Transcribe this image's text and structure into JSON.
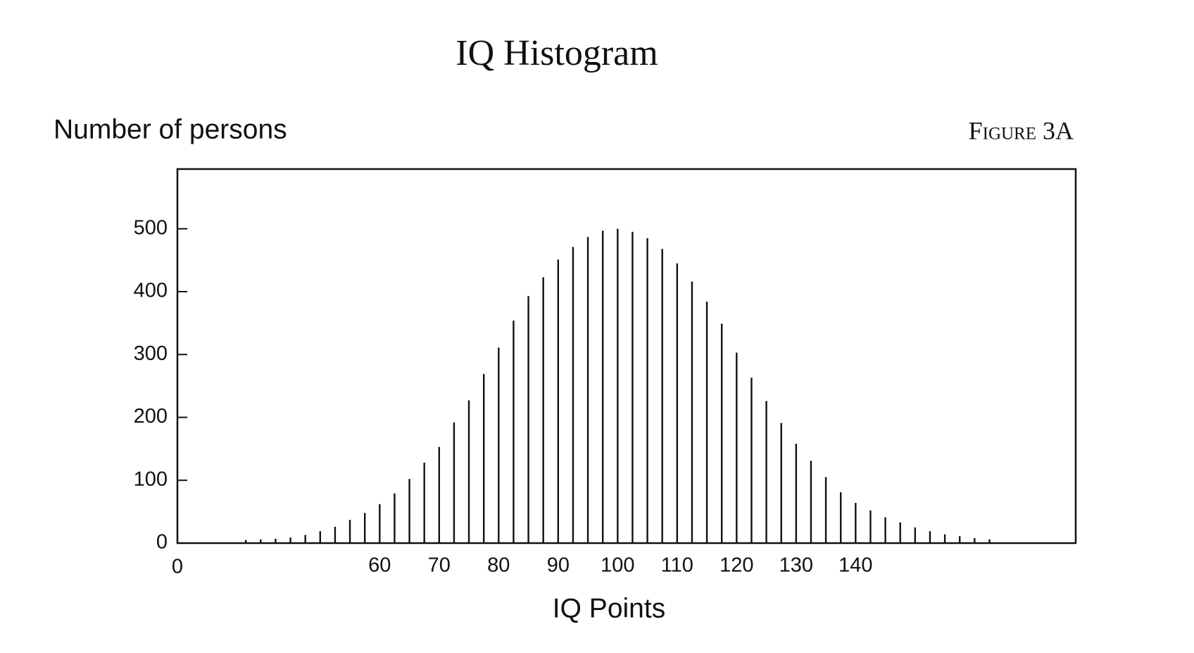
{
  "chart_data": {
    "type": "stem",
    "title": "IQ Histogram",
    "figure_label": "Figure 3A",
    "y_label": "Number of persons",
    "x_label": "IQ Points",
    "x_axis_break_label": "0",
    "color": "#111111",
    "x": [
      37.5,
      40,
      42.5,
      45,
      47.5,
      50,
      52.5,
      55,
      57.5,
      60,
      62.5,
      65,
      67.5,
      70,
      72.5,
      75,
      77.5,
      80,
      82.5,
      85,
      87.5,
      90,
      92.5,
      95,
      97.5,
      100,
      102.5,
      105,
      107.5,
      110,
      112.5,
      115,
      117.5,
      120,
      122.5,
      125,
      127.5,
      130,
      132.5,
      135,
      137.5,
      140,
      142.5,
      145,
      147.5,
      150,
      152.5,
      155,
      157.5,
      160,
      162.5
    ],
    "values": [
      5,
      6,
      7,
      9,
      13,
      19,
      26,
      37,
      48,
      62,
      79,
      102,
      128,
      153,
      192,
      227,
      269,
      311,
      354,
      393,
      423,
      451,
      471,
      487,
      497,
      500,
      495,
      485,
      468,
      445,
      416,
      384,
      349,
      303,
      263,
      226,
      191,
      158,
      131,
      105,
      81,
      64,
      52,
      41,
      33,
      25,
      19,
      14,
      11,
      8,
      6
    ],
    "xlim": [
      26,
      177
    ],
    "ylim": [
      0,
      595
    ],
    "xticks": [
      60,
      70,
      80,
      90,
      100,
      110,
      120,
      130,
      140
    ],
    "yticks": [
      0,
      100,
      200,
      300,
      400,
      500
    ]
  }
}
